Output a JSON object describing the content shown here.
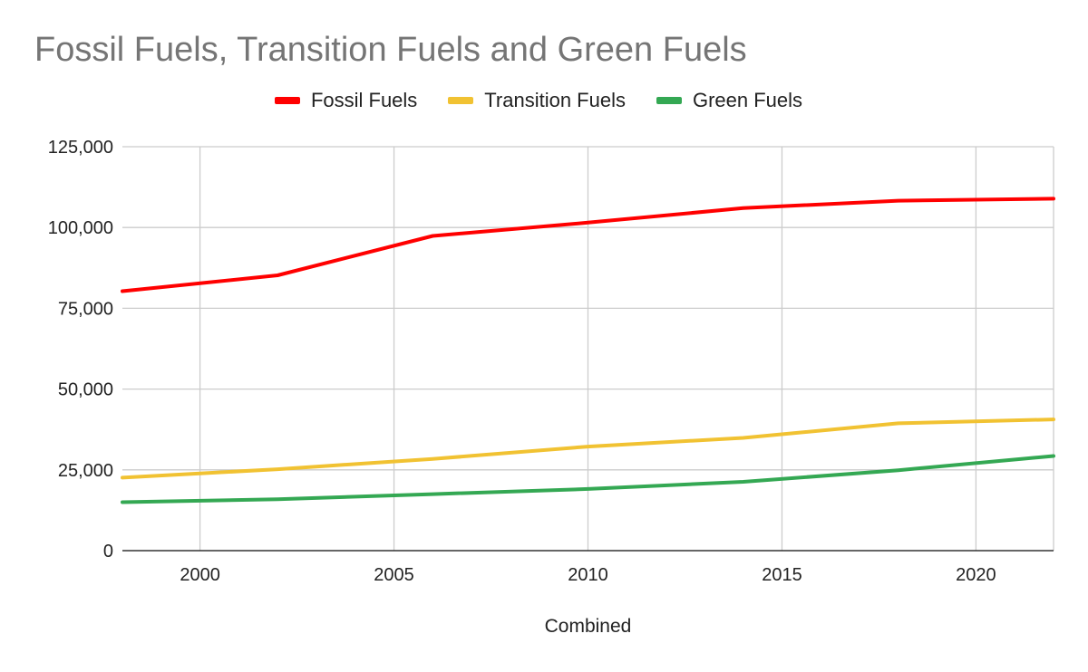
{
  "chart_data": {
    "type": "line",
    "title": "Fossil Fuels, Transition Fuels and Green Fuels",
    "xlabel": "Combined",
    "ylabel": "",
    "xlim": [
      1998,
      2022
    ],
    "ylim": [
      0,
      125000
    ],
    "x_ticks": [
      2000,
      2005,
      2010,
      2015,
      2020
    ],
    "x_tick_labels": [
      "2000",
      "2005",
      "2010",
      "2015",
      "2020"
    ],
    "y_ticks": [
      0,
      25000,
      50000,
      75000,
      100000,
      125000
    ],
    "y_tick_labels": [
      "0",
      "25,000",
      "50,000",
      "75,000",
      "100,000",
      "125,000"
    ],
    "grid": true,
    "legend_position": "top-center",
    "x": [
      1998,
      2002,
      2006,
      2010,
      2014,
      2018,
      2022
    ],
    "series": [
      {
        "name": "Fossil Fuels",
        "color": "#ff0000",
        "values": [
          80300,
          85200,
          97400,
          101500,
          106000,
          108300,
          108900
        ]
      },
      {
        "name": "Transition Fuels",
        "color": "#f1c232",
        "values": [
          22600,
          25200,
          28400,
          32200,
          34900,
          39400,
          40600
        ]
      },
      {
        "name": "Green Fuels",
        "color": "#34a853",
        "values": [
          15000,
          15900,
          17500,
          19100,
          21300,
          24900,
          29300
        ]
      }
    ]
  }
}
